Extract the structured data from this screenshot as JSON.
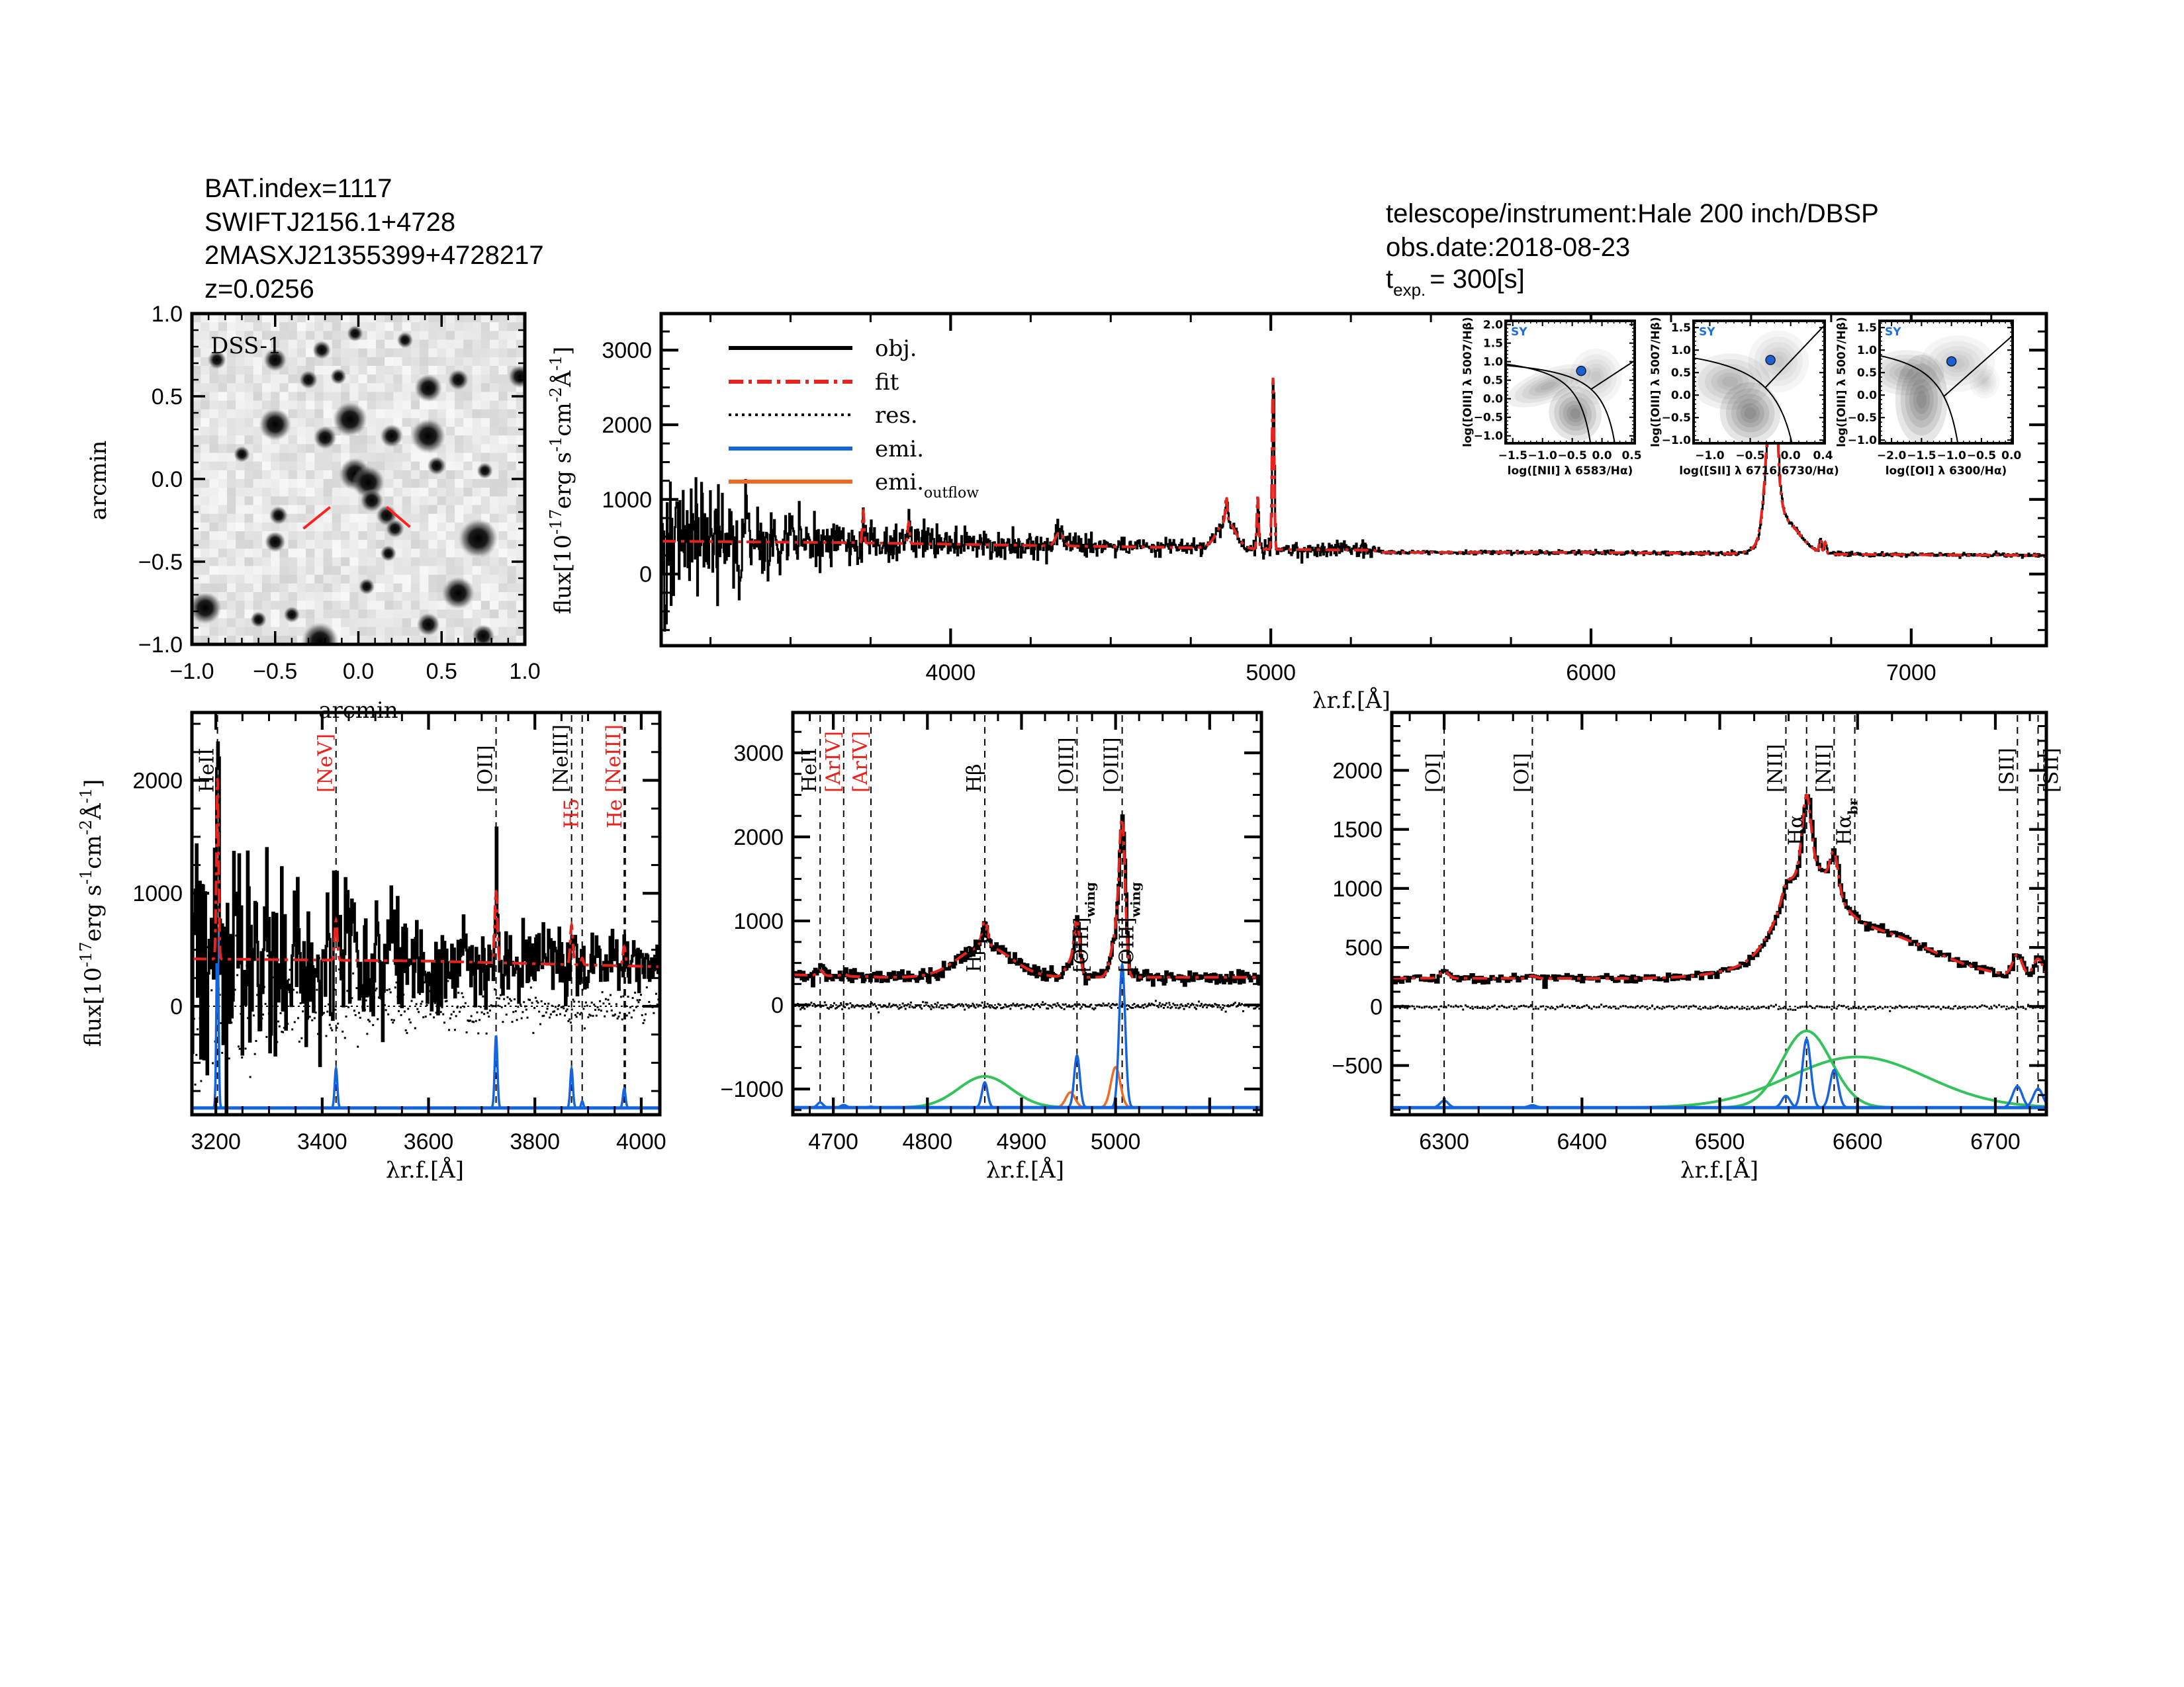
{
  "header": {
    "bat_index": "BAT.index=1117",
    "swift_name": "SWIFTJ2156.1+4728",
    "twomass_name": "2MASXJ21355399+4728217",
    "redshift": "z=0.0256",
    "telescope": "telescope/instrument:Hale 200 inch/DBSP",
    "obs_date": "obs.date:2018-08-23",
    "texp_label": "t",
    "texp_sub": "exp.",
    "texp_value": "= 300[s]"
  },
  "colors": {
    "obj": "#000000",
    "fit": "#e8231e",
    "emi": "#1565e0",
    "outflow": "#f26a22",
    "broad": "#33c35a",
    "bpt_point": "#1f5fd6",
    "sy_label": "#1f6fe0"
  },
  "flux_label": [
    {
      "t": "flux[10"
    },
    {
      "t": "-17",
      "sup": true
    },
    {
      "t": "erg s"
    },
    {
      "t": "-1",
      "sup": true
    },
    {
      "t": "cm"
    },
    {
      "t": "-2",
      "sup": true
    },
    {
      "t": "Å"
    },
    {
      "t": "-1",
      "sup": true
    },
    {
      "t": "]"
    }
  ],
  "wave_label": {
    "pre": "λ",
    "sub": "r.f.",
    "post": "[Å]"
  },
  "legend": [
    {
      "label": "obj.",
      "style": "obj"
    },
    {
      "label": "fit",
      "style": "fit"
    },
    {
      "label": "res.",
      "style": "res"
    },
    {
      "label": "emi.",
      "style": "emi"
    },
    {
      "label": "emi.",
      "sub": "outflow",
      "style": "outflow"
    }
  ],
  "image": {
    "label": "DSS-1",
    "xlabel": "arcmin",
    "ylabel": "arcmin",
    "xlim": [
      -1,
      1
    ],
    "ylim": [
      -1,
      1
    ],
    "xticks": [
      -1.0,
      -0.5,
      0.0,
      0.5,
      1.0
    ],
    "yticks": [
      -1.0,
      -0.5,
      0.0,
      0.5,
      1.0
    ],
    "decimals": 1,
    "markers": [
      [
        -0.33,
        -0.3,
        -0.17,
        -0.17
      ],
      [
        0.17,
        -0.17,
        0.31,
        -0.29
      ]
    ],
    "stars": [
      [
        -0.5,
        0.33,
        0.07
      ],
      [
        -0.05,
        0.36,
        0.075
      ],
      [
        0.42,
        0.26,
        0.075
      ],
      [
        0.2,
        0.26,
        0.05
      ],
      [
        -0.2,
        0.25,
        0.05
      ],
      [
        -0.02,
        0.03,
        0.07
      ],
      [
        0.06,
        -0.02,
        0.07
      ],
      [
        0.08,
        -0.13,
        0.05
      ],
      [
        0.17,
        -0.22,
        0.045
      ],
      [
        0.22,
        -0.3,
        0.04
      ],
      [
        0.72,
        -0.36,
        0.085
      ],
      [
        -0.5,
        -0.38,
        0.045
      ],
      [
        -0.48,
        -0.22,
        0.04
      ],
      [
        0.6,
        -0.69,
        0.07
      ],
      [
        -0.92,
        -0.78,
        0.07
      ],
      [
        -0.23,
        -0.98,
        0.08
      ],
      [
        0.42,
        -0.88,
        0.05
      ],
      [
        0.18,
        -0.45,
        0.035
      ],
      [
        -0.4,
        -0.82,
        0.035
      ],
      [
        0.42,
        0.55,
        0.06
      ],
      [
        -0.5,
        0.72,
        0.05
      ],
      [
        -0.22,
        0.78,
        0.04
      ],
      [
        -0.3,
        0.6,
        0.04
      ],
      [
        -0.85,
        0.72,
        0.04
      ],
      [
        0.6,
        0.6,
        0.045
      ],
      [
        0.97,
        0.62,
        0.05
      ],
      [
        -0.7,
        0.15,
        0.035
      ],
      [
        0.47,
        0.08,
        0.04
      ],
      [
        0.76,
        0.05,
        0.035
      ],
      [
        -0.02,
        0.88,
        0.035
      ],
      [
        -0.12,
        0.62,
        0.035
      ],
      [
        0.75,
        -0.95,
        0.05
      ],
      [
        -0.6,
        -0.85,
        0.035
      ],
      [
        0.05,
        -0.65,
        0.035
      ],
      [
        0.28,
        0.84,
        0.035
      ]
    ]
  },
  "chart_data": [
    {
      "name": "overview",
      "type": "line",
      "xlabel": "λr.f.[Å]",
      "ylabel": "flux[10^-17 erg s^-1 cm^-2 Å^-1]",
      "xlim": [
        3096,
        7422
      ],
      "ylim": [
        -960,
        3490
      ],
      "xticks": [
        4000,
        5000,
        6000,
        7000
      ],
      "yticks": [
        0,
        1000,
        2000,
        3000
      ],
      "decimals": 0,
      "continuum": [
        [
          3096,
          440
        ],
        [
          3700,
          420
        ],
        [
          4300,
          380
        ],
        [
          4800,
          350
        ],
        [
          5000,
          330
        ],
        [
          5320,
          320
        ],
        [
          5340,
          290
        ],
        [
          6000,
          290
        ],
        [
          6500,
          270
        ],
        [
          7422,
          250
        ]
      ],
      "noise": [
        [
          3096,
          650
        ],
        [
          3300,
          320
        ],
        [
          3600,
          160
        ],
        [
          4500,
          60
        ],
        [
          5320,
          45
        ],
        [
          5340,
          14
        ],
        [
          7422,
          12
        ]
      ],
      "features": [
        {
          "center": 3727,
          "amp": 420,
          "sigma": 3
        },
        {
          "center": 3869,
          "amp": 280,
          "sigma": 3
        },
        {
          "center": 4340,
          "amp": 180,
          "sigma": 12
        },
        {
          "center": 4861,
          "amp": 330,
          "sigma": 3
        },
        {
          "center": 4861,
          "amp": 370,
          "sigma": 28
        },
        {
          "center": 4959,
          "amp": 700,
          "sigma": 3
        },
        {
          "center": 5007,
          "amp": 2300,
          "sigma": 3.3
        },
        {
          "center": 6563,
          "amp": 580,
          "sigma": 3
        },
        {
          "center": 6583,
          "amp": 320,
          "sigma": 3
        },
        {
          "center": 6548,
          "amp": 100,
          "sigma": 3
        },
        {
          "center": 6563,
          "amp": 1500,
          "sigma": 18
        },
        {
          "center": 6600,
          "amp": 450,
          "sigma": 50
        },
        {
          "center": 6716,
          "amp": 170,
          "sigma": 3.5
        },
        {
          "center": 6731,
          "amp": 150,
          "sigma": 3.5
        }
      ],
      "show_residual": false,
      "show_emission": false
    },
    {
      "name": "blue",
      "type": "line",
      "xlabel": "λr.f.[Å]",
      "ylabel": "flux[10^-17 erg s^-1 cm^-2 Å^-1]",
      "xlim": [
        3155,
        4035
      ],
      "ylim": [
        -960,
        2600
      ],
      "xticks": [
        3200,
        3400,
        3600,
        3800,
        4000
      ],
      "yticks": [
        0,
        1000,
        2000
      ],
      "decimals": 0,
      "continuum": [
        [
          3155,
          420
        ],
        [
          3600,
          400
        ],
        [
          4035,
          350
        ]
      ],
      "noise": [
        [
          3155,
          750
        ],
        [
          3400,
          350
        ],
        [
          3700,
          200
        ],
        [
          4035,
          120
        ]
      ],
      "emission_baseline": -900,
      "narrow": [
        {
          "center": 3203,
          "amp": 1600,
          "sigma": 2
        },
        {
          "center": 3426,
          "amp": 350,
          "sigma": 2.5
        },
        {
          "center": 3727,
          "amp": 640,
          "sigma": 2.5
        },
        {
          "center": 3869,
          "amp": 350,
          "sigma": 2.5
        },
        {
          "center": 3889,
          "amp": 60,
          "sigma": 2
        },
        {
          "center": 3968,
          "amp": 170,
          "sigma": 2.5
        }
      ],
      "broad": [],
      "outflow": [],
      "lines": [
        {
          "label": "HeII",
          "wl": 3203,
          "color": "#000000",
          "tier": 1
        },
        {
          "label": "[NeV]",
          "wl": 3426,
          "color": "#e8231e",
          "tier": 1
        },
        {
          "label": "[OII]",
          "wl": 3727,
          "color": "#000000",
          "tier": 1
        },
        {
          "label": "[NeIII]",
          "wl": 3869,
          "color": "#000000",
          "tier": 1
        },
        {
          "label": "H5",
          "wl": 3889,
          "color": "#e8231e",
          "tier": 2
        },
        {
          "label": "[NeIII]",
          "wl": 3968,
          "color": "#e8231e",
          "tier": 1
        },
        {
          "label": "He",
          "wl": 3970,
          "color": "#e8231e",
          "tier": 2
        }
      ],
      "show_residual": true,
      "show_emission": true
    },
    {
      "name": "hbeta",
      "type": "line",
      "xlabel": "λr.f.[Å]",
      "xlim": [
        4657,
        5155
      ],
      "ylim": [
        -1306,
        3480
      ],
      "xticks": [
        4700,
        4800,
        4900,
        5000
      ],
      "yticks": [
        -1000,
        0,
        1000,
        2000,
        3000
      ],
      "decimals": 0,
      "continuum": [
        [
          4657,
          360
        ],
        [
          4750,
          330
        ],
        [
          5155,
          330
        ]
      ],
      "noise": [
        [
          4657,
          40
        ],
        [
          5155,
          40
        ]
      ],
      "emission_baseline": -1220,
      "narrow": [
        {
          "center": 4686,
          "amp": 60,
          "sigma": 3
        },
        {
          "center": 4711,
          "amp": 30,
          "sigma": 3
        },
        {
          "center": 4740,
          "amp": 10,
          "sigma": 3
        },
        {
          "center": 4861,
          "amp": 300,
          "sigma": 3
        },
        {
          "center": 4959,
          "amp": 620,
          "sigma": 3
        },
        {
          "center": 5007,
          "amp": 1700,
          "sigma": 3.2
        }
      ],
      "broad": [
        {
          "center": 4861,
          "amp": 370,
          "sigma": 28
        }
      ],
      "outflow": [
        {
          "center": 4952,
          "amp": 180,
          "sigma": 5
        },
        {
          "center": 5000,
          "amp": 480,
          "sigma": 5
        }
      ],
      "lines": [
        {
          "label": "HeII",
          "wl": 4686,
          "color": "#000000",
          "tier": 1
        },
        {
          "label": "[ArIV]",
          "wl": 4711,
          "color": "#e8231e",
          "tier": 1
        },
        {
          "label": "[ArIV]",
          "wl": 4740,
          "color": "#e8231e",
          "tier": 1
        },
        {
          "label": "Hβ",
          "wl": 4861,
          "color": "#000000",
          "tier": 1
        },
        {
          "label": "Hβ",
          "sub": "br",
          "wl": 4861,
          "color": "#000000",
          "tier": 3,
          "noline": true
        },
        {
          "label": "[OIII]",
          "wl": 4959,
          "color": "#000000",
          "tier": 1
        },
        {
          "label": "[OIII]",
          "sub": "wing",
          "wl": 4975,
          "color": "#000000",
          "tier": 3,
          "noline": true
        },
        {
          "label": "[OIII]",
          "wl": 5007,
          "color": "#000000",
          "tier": 1
        },
        {
          "label": "[OIII]",
          "sub": "wing",
          "wl": 5023,
          "color": "#000000",
          "tier": 3,
          "noline": true
        }
      ],
      "show_residual": true,
      "show_emission": true
    },
    {
      "name": "halpha",
      "type": "line",
      "xlabel": "λr.f.[Å]",
      "xlim": [
        6262,
        6737
      ],
      "ylim": [
        -917,
        2490
      ],
      "xticks": [
        6300,
        6400,
        6500,
        6600,
        6700
      ],
      "yticks": [
        -500,
        0,
        500,
        1000,
        1500,
        2000
      ],
      "decimals": 0,
      "continuum": [
        [
          6262,
          240
        ],
        [
          6737,
          230
        ]
      ],
      "noise": [
        [
          6262,
          18
        ],
        [
          6737,
          18
        ]
      ],
      "emission_baseline": -857,
      "narrow": [
        {
          "center": 6300,
          "amp": 60,
          "sigma": 3
        },
        {
          "center": 6364,
          "amp": 20,
          "sigma": 3
        },
        {
          "center": 6548,
          "amp": 100,
          "sigma": 3
        },
        {
          "center": 6563,
          "amp": 580,
          "sigma": 3
        },
        {
          "center": 6583,
          "amp": 320,
          "sigma": 3
        },
        {
          "center": 6716,
          "amp": 180,
          "sigma": 3.5
        },
        {
          "center": 6731,
          "amp": 160,
          "sigma": 3.5
        }
      ],
      "broad": [
        {
          "center": 6563,
          "amp": 650,
          "sigma": 18
        },
        {
          "center": 6600,
          "amp": 430,
          "sigma": 50
        }
      ],
      "outflow": [],
      "lines": [
        {
          "label": "[OI]",
          "wl": 6300,
          "color": "#000000",
          "tier": 1
        },
        {
          "label": "[OI]",
          "wl": 6364,
          "color": "#000000",
          "tier": 1
        },
        {
          "label": "[NII]",
          "wl": 6548,
          "color": "#000000",
          "tier": 1
        },
        {
          "label": "Hα",
          "wl": 6563,
          "color": "#000000",
          "tier": 2
        },
        {
          "label": "[NII]",
          "wl": 6583,
          "color": "#000000",
          "tier": 1
        },
        {
          "label": "Hα",
          "sub": "br",
          "wl": 6598,
          "color": "#000000",
          "tier": 2
        },
        {
          "label": "[SII]",
          "wl": 6716,
          "color": "#000000",
          "tier": 1
        },
        {
          "label": "[SII]",
          "wl": 6731,
          "color": "#000000",
          "tier": 1
        }
      ],
      "show_residual": true,
      "show_emission": true
    },
    {
      "name": "bpt-nii",
      "type": "scatter",
      "class_label": "SY",
      "xlabel": "log([NII] λ 6583/Hα)",
      "ylabel": "log([OIII] λ 5007/Hβ)",
      "xlim": [
        -1.62,
        0.55
      ],
      "ylim": [
        -1.2,
        2.1
      ],
      "xticks": [
        -1.5,
        -1.0,
        -0.5,
        0.0,
        0.5
      ],
      "yticks": [
        -1.0,
        -0.5,
        0.0,
        0.5,
        1.0,
        1.5,
        2.0
      ],
      "decimals": 1,
      "point": [
        -0.35,
        0.75
      ],
      "curves": [
        {
          "a": 0.61,
          "b": 0.47,
          "c": 1.19
        },
        {
          "a": 0.61,
          "b": 0.05,
          "c": 1.3
        }
      ],
      "division": {
        "slope": 1.05,
        "intercept": 0.45
      },
      "density": [
        {
          "x": -0.45,
          "y": -0.4,
          "rx": 0.35,
          "ry": 0.6,
          "rot": -25,
          "w": 1
        },
        {
          "x": -0.9,
          "y": 0.35,
          "rx": 0.6,
          "ry": 0.35,
          "rot": -20,
          "w": 0.6
        },
        {
          "x": -0.1,
          "y": 0.6,
          "rx": 0.35,
          "ry": 0.6,
          "rot": 0,
          "w": 0.4
        }
      ]
    },
    {
      "name": "bpt-sii",
      "type": "scatter",
      "class_label": "SY",
      "xlabel": "log([SII] λ 6716,6730/Hα)",
      "ylabel": "log([OIII] λ 5007/Hβ)",
      "xlim": [
        -1.2,
        0.42
      ],
      "ylim": [
        -1.07,
        1.65
      ],
      "xticks": [
        -1.0,
        -0.5,
        0.0,
        0.4
      ],
      "yticks": [
        -1.0,
        -0.5,
        0.0,
        0.5,
        1.0,
        1.5
      ],
      "decimals": 1,
      "point": [
        -0.25,
        0.78
      ],
      "curves": [
        {
          "a": 0.72,
          "b": 0.32,
          "c": 1.3
        }
      ],
      "division": {
        "slope": 1.89,
        "intercept": 0.76
      },
      "density": [
        {
          "x": -0.5,
          "y": -0.4,
          "rx": 0.3,
          "ry": 0.55,
          "rot": -20,
          "w": 1
        },
        {
          "x": -0.75,
          "y": 0.3,
          "rx": 0.4,
          "ry": 0.5,
          "rot": 0,
          "w": 0.6
        },
        {
          "x": -0.15,
          "y": 0.75,
          "rx": 0.3,
          "ry": 0.55,
          "rot": 0,
          "w": 0.4
        }
      ]
    },
    {
      "name": "bpt-oi",
      "type": "scatter",
      "class_label": "SY",
      "xlabel": "log([OI] λ 6300/Hα)",
      "ylabel": "log([OIII] λ 5007/Hβ)",
      "xlim": [
        -2.2,
        0.02
      ],
      "ylim": [
        -1.07,
        1.65
      ],
      "xticks": [
        -2.0,
        -1.5,
        -1.0,
        -0.5,
        0.0
      ],
      "yticks": [
        -1.0,
        -0.5,
        0.0,
        0.5,
        1.0,
        1.5
      ],
      "decimals": 1,
      "point": [
        -1.0,
        0.75
      ],
      "curves": [
        {
          "a": 0.73,
          "b": -0.59,
          "c": 1.33
        }
      ],
      "division": {
        "slope": 1.18,
        "intercept": 1.3
      },
      "density": [
        {
          "x": -1.5,
          "y": -0.1,
          "rx": 0.35,
          "ry": 0.8,
          "rot": 0,
          "w": 1
        },
        {
          "x": -1.75,
          "y": 0.5,
          "rx": 0.5,
          "ry": 0.4,
          "rot": 0,
          "w": 0.6
        },
        {
          "x": -0.9,
          "y": 0.7,
          "rx": 0.5,
          "ry": 0.5,
          "rot": 0,
          "w": 0.4
        },
        {
          "x": -0.45,
          "y": 0.3,
          "rx": 0.2,
          "ry": 0.3,
          "rot": 0,
          "w": 0.3
        }
      ]
    }
  ]
}
